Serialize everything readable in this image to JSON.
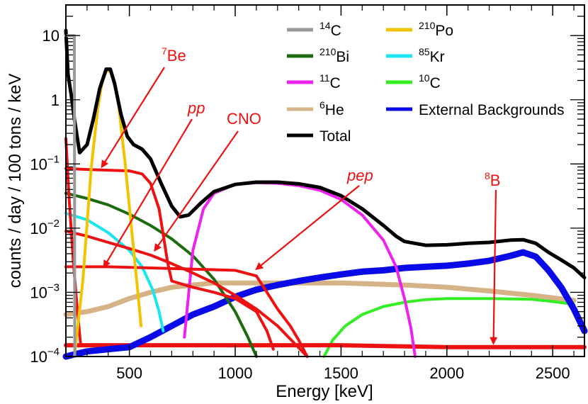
{
  "chart_data": {
    "type": "line",
    "title": "",
    "xlabel": "Energy [keV]",
    "ylabel": "counts / day / 100 tons / keV",
    "xlim": [
      200,
      2650
    ],
    "ylim": [
      0.0001,
      30
    ],
    "yscale": "log",
    "x_ticks": [
      500,
      1000,
      1500,
      2000,
      2500
    ],
    "x_tick_labels": [
      "500",
      "1000",
      "1500",
      "2000",
      "2500"
    ],
    "y_ticks": [
      0.0001,
      0.001,
      0.01,
      0.1,
      1,
      10
    ],
    "y_tick_labels": [
      {
        "base": "10",
        "exp": "−4"
      },
      {
        "base": "10",
        "exp": "−3"
      },
      {
        "base": "10",
        "exp": "−2"
      },
      {
        "base": "10",
        "exp": "−1"
      },
      {
        "base": "1",
        "exp": ""
      },
      {
        "base": "10",
        "exp": ""
      }
    ],
    "series": [
      {
        "key": "c14",
        "name": "C",
        "sup": "14",
        "color": "#999999",
        "points": [
          [
            200,
            10
          ],
          [
            240,
            10
          ],
          [
            242,
            0.0001
          ]
        ]
      },
      {
        "key": "po210",
        "name": "Po",
        "sup": "210",
        "color": "#f2c400",
        "points": [
          [
            240,
            0.0001
          ],
          [
            280,
            0.0015
          ],
          [
            320,
            0.09
          ],
          [
            350,
            0.7
          ],
          [
            370,
            1.8
          ],
          [
            390,
            2.8
          ],
          [
            410,
            2.8
          ],
          [
            430,
            1.8
          ],
          [
            450,
            0.8
          ],
          [
            480,
            0.1
          ],
          [
            510,
            0.01
          ],
          [
            540,
            0.001
          ],
          [
            555,
            0.0003
          ]
        ]
      },
      {
        "key": "bi210",
        "name": "Bi",
        "sup": "210",
        "color": "#1c6b0f",
        "points": [
          [
            200,
            0.035
          ],
          [
            300,
            0.029
          ],
          [
            400,
            0.023
          ],
          [
            500,
            0.0165
          ],
          [
            600,
            0.011
          ],
          [
            700,
            0.0068
          ],
          [
            800,
            0.0037
          ],
          [
            900,
            0.0016
          ],
          [
            1000,
            0.0005
          ],
          [
            1060,
            0.0002
          ],
          [
            1100,
            0.0001
          ]
        ]
      },
      {
        "key": "kr85",
        "name": "Kr",
        "sup": "85",
        "color": "#18e6f0",
        "points": [
          [
            200,
            0.017
          ],
          [
            300,
            0.0135
          ],
          [
            400,
            0.0085
          ],
          [
            500,
            0.0045
          ],
          [
            560,
            0.0025
          ],
          [
            610,
            0.0011
          ],
          [
            640,
            0.0005
          ],
          [
            660,
            0.00025
          ]
        ]
      },
      {
        "key": "c11",
        "name": "C",
        "sup": "11",
        "color": "#ee22ee",
        "points": [
          [
            760,
            0.0002
          ],
          [
            800,
            0.0045
          ],
          [
            850,
            0.02
          ],
          [
            900,
            0.035
          ],
          [
            1000,
            0.048
          ],
          [
            1100,
            0.051
          ],
          [
            1200,
            0.05
          ],
          [
            1300,
            0.046
          ],
          [
            1400,
            0.039
          ],
          [
            1500,
            0.028
          ],
          [
            1600,
            0.016
          ],
          [
            1700,
            0.0065
          ],
          [
            1760,
            0.0025
          ],
          [
            1800,
            0.0008
          ],
          [
            1830,
            0.00028
          ],
          [
            1850,
            0.0001
          ]
        ]
      },
      {
        "key": "c10",
        "name": "C",
        "sup": "10",
        "color": "#33ee22",
        "points": [
          [
            1420,
            0.0001
          ],
          [
            1460,
            0.00018
          ],
          [
            1520,
            0.0003
          ],
          [
            1600,
            0.00045
          ],
          [
            1700,
            0.0006
          ],
          [
            1800,
            0.0007
          ],
          [
            1900,
            0.00077
          ],
          [
            2000,
            0.0008
          ],
          [
            2200,
            0.0008
          ],
          [
            2400,
            0.00078
          ],
          [
            2500,
            0.00072
          ],
          [
            2600,
            0.00065
          ]
        ]
      },
      {
        "key": "he6",
        "name": "He",
        "sup": "6",
        "color": "#d5b386",
        "points": [
          [
            200,
            0.00045
          ],
          [
            300,
            0.0005
          ],
          [
            400,
            0.0006
          ],
          [
            500,
            0.0008
          ],
          [
            600,
            0.001
          ],
          [
            700,
            0.0012
          ],
          [
            800,
            0.0013
          ],
          [
            900,
            0.0014
          ],
          [
            1000,
            0.0014
          ],
          [
            1200,
            0.0014
          ],
          [
            1500,
            0.0014
          ],
          [
            1800,
            0.0013
          ],
          [
            2000,
            0.0012
          ],
          [
            2200,
            0.00105
          ],
          [
            2400,
            0.0009
          ],
          [
            2600,
            0.00075
          ]
        ]
      },
      {
        "key": "ext",
        "name": "External Backgrounds",
        "sup": "",
        "color": "#0a0ae8",
        "points": [
          [
            200,
            0.0001
          ],
          [
            300,
            0.00012
          ],
          [
            400,
            0.00013
          ],
          [
            500,
            0.00014
          ],
          [
            600,
            0.0002
          ],
          [
            700,
            0.0003
          ],
          [
            800,
            0.00045
          ],
          [
            900,
            0.0006
          ],
          [
            1000,
            0.00085
          ],
          [
            1100,
            0.0011
          ],
          [
            1200,
            0.0013
          ],
          [
            1300,
            0.0015
          ],
          [
            1400,
            0.0017
          ],
          [
            1500,
            0.0019
          ],
          [
            1600,
            0.0021
          ],
          [
            1700,
            0.0022
          ],
          [
            1800,
            0.0024
          ],
          [
            1900,
            0.0025
          ],
          [
            2000,
            0.0026
          ],
          [
            2100,
            0.0028
          ],
          [
            2200,
            0.0031
          ],
          [
            2300,
            0.0037
          ],
          [
            2360,
            0.0042
          ],
          [
            2420,
            0.0036
          ],
          [
            2480,
            0.0022
          ],
          [
            2540,
            0.0012
          ],
          [
            2600,
            0.00055
          ],
          [
            2650,
            0.00025
          ]
        ]
      },
      {
        "key": "total",
        "name": "Total",
        "sup": "",
        "color": "#000000",
        "points": [
          [
            200,
            12
          ],
          [
            210,
            2.5
          ],
          [
            225,
            1.2
          ],
          [
            240,
            0.5
          ],
          [
            265,
            0.15
          ],
          [
            300,
            0.2
          ],
          [
            330,
            0.5
          ],
          [
            360,
            1.5
          ],
          [
            390,
            3.0
          ],
          [
            410,
            3.0
          ],
          [
            430,
            1.8
          ],
          [
            460,
            0.6
          ],
          [
            490,
            0.27
          ],
          [
            520,
            0.2
          ],
          [
            560,
            0.17
          ],
          [
            600,
            0.12
          ],
          [
            650,
            0.05
          ],
          [
            700,
            0.022
          ],
          [
            740,
            0.015
          ],
          [
            780,
            0.016
          ],
          [
            840,
            0.025
          ],
          [
            900,
            0.037
          ],
          [
            1000,
            0.048
          ],
          [
            1100,
            0.052
          ],
          [
            1200,
            0.052
          ],
          [
            1300,
            0.049
          ],
          [
            1400,
            0.043
          ],
          [
            1500,
            0.032
          ],
          [
            1600,
            0.02
          ],
          [
            1700,
            0.011
          ],
          [
            1760,
            0.0075
          ],
          [
            1800,
            0.0062
          ],
          [
            1900,
            0.0054
          ],
          [
            2000,
            0.0055
          ],
          [
            2100,
            0.0058
          ],
          [
            2200,
            0.006
          ],
          [
            2300,
            0.0065
          ],
          [
            2360,
            0.0066
          ],
          [
            2420,
            0.0058
          ],
          [
            2480,
            0.0042
          ],
          [
            2540,
            0.0032
          ],
          [
            2600,
            0.0024
          ],
          [
            2650,
            0.0017
          ]
        ]
      },
      {
        "key": "be7",
        "name": "Be",
        "sup": "7",
        "color": "#ee1111",
        "legend": false,
        "points": [
          [
            200,
            0.085
          ],
          [
            300,
            0.082
          ],
          [
            400,
            0.08
          ],
          [
            500,
            0.078
          ],
          [
            560,
            0.07
          ],
          [
            600,
            0.05
          ],
          [
            640,
            0.02
          ],
          [
            660,
            0.008
          ],
          [
            680,
            0.003
          ],
          [
            700,
            0.0015
          ],
          [
            800,
            0.0012
          ],
          [
            900,
            0.001
          ],
          [
            1000,
            0.0008
          ],
          [
            1100,
            0.0005
          ],
          [
            1150,
            0.00025
          ],
          [
            1180,
            0.00013
          ]
        ]
      },
      {
        "key": "cno",
        "name": "CNO",
        "sup": "",
        "color": "#ee1111",
        "legend": false,
        "points": [
          [
            200,
            0.009
          ],
          [
            300,
            0.0075
          ],
          [
            400,
            0.006
          ],
          [
            500,
            0.0048
          ],
          [
            600,
            0.0038
          ],
          [
            700,
            0.0028
          ],
          [
            800,
            0.002
          ],
          [
            900,
            0.0014
          ],
          [
            1000,
            0.0009
          ],
          [
            1100,
            0.00055
          ],
          [
            1200,
            0.0003
          ],
          [
            1280,
            0.00016
          ],
          [
            1340,
            0.0001
          ]
        ]
      },
      {
        "key": "pep",
        "name": "pep",
        "sup": "",
        "color": "#ee1111",
        "legend": false,
        "points": [
          [
            200,
            0.0025
          ],
          [
            400,
            0.0025
          ],
          [
            600,
            0.0024
          ],
          [
            800,
            0.0023
          ],
          [
            1000,
            0.0022
          ],
          [
            1100,
            0.0018
          ],
          [
            1150,
            0.001
          ],
          [
            1200,
            0.00055
          ],
          [
            1260,
            0.0003
          ],
          [
            1300,
            0.00018
          ],
          [
            1340,
            0.0001
          ]
        ]
      },
      {
        "key": "pp",
        "name": "pp",
        "sup": "",
        "color": "#ee1111",
        "legend": false,
        "points": [
          [
            200,
            0.25
          ],
          [
            215,
            0.03
          ],
          [
            235,
            0.003
          ],
          [
            255,
            0.0005
          ],
          [
            270,
            0.00015
          ]
        ]
      },
      {
        "key": "b8",
        "name": "B",
        "sup": "8",
        "color": "#ee1111",
        "legend": false,
        "points": [
          [
            200,
            0.00015
          ],
          [
            600,
            0.00015
          ],
          [
            1000,
            0.00015
          ],
          [
            1500,
            0.00015
          ],
          [
            2000,
            0.00014
          ],
          [
            2400,
            0.00014
          ],
          [
            2650,
            0.00014
          ]
        ]
      }
    ],
    "annotations": [
      {
        "key": "be7",
        "text": "Be",
        "sup": "7",
        "italic": false,
        "target": [
          370,
          0.09
        ]
      },
      {
        "key": "pp",
        "text": "pp",
        "sup": "",
        "italic": true,
        "target": [
          380,
          0.0025
        ]
      },
      {
        "key": "cno",
        "text": "CNO",
        "sup": "",
        "italic": false,
        "target": [
          620,
          0.0045
        ]
      },
      {
        "key": "pep",
        "text": "pep",
        "sup": "",
        "italic": true,
        "target": [
          1100,
          0.0023
        ]
      },
      {
        "key": "b8",
        "text": "B",
        "sup": "8",
        "italic": false,
        "target": [
          2220,
          0.00016
        ]
      }
    ],
    "legend_position": "top-right"
  }
}
